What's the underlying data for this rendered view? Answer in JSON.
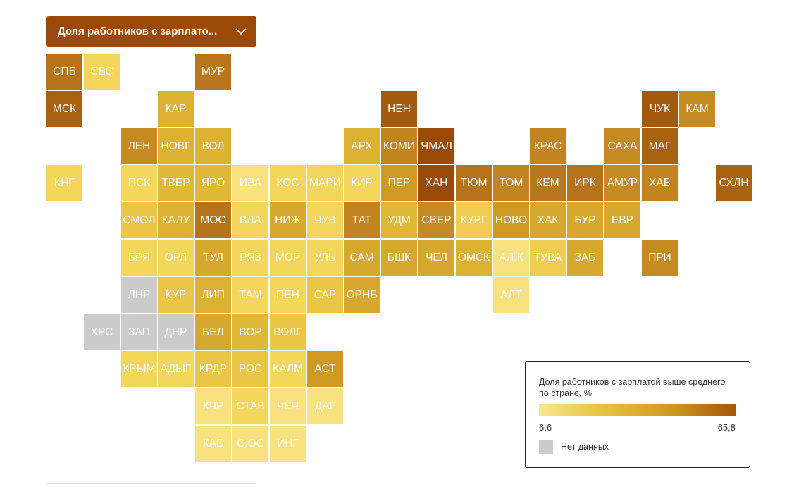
{
  "dropdown": {
    "label": "Доля работников с зарплато...",
    "icon": "chevron-down-icon"
  },
  "legend": {
    "title": "Доля работников с зарплатой выше среднего по стране, %",
    "min_label": "6,6",
    "max_label": "65,8",
    "no_data_label": "Нет данных",
    "gradient_colors": [
      "#f9e68c",
      "#e8c040",
      "#cf9a22",
      "#a4560a"
    ],
    "no_data_color": "#cbcbcb"
  },
  "regions": [
    {
      "label": "СПБ",
      "row": 0,
      "col": 0,
      "color": "#b5731a"
    },
    {
      "label": "СВС",
      "row": 0,
      "col": 1,
      "color": "#f5d65c"
    },
    {
      "label": "МУР",
      "row": 0,
      "col": 4,
      "color": "#b9771d"
    },
    {
      "label": "МСК",
      "row": 1,
      "col": 0,
      "color": "#a9620f"
    },
    {
      "label": "КАР",
      "row": 1,
      "col": 3,
      "color": "#dcb232"
    },
    {
      "label": "НЕН",
      "row": 1,
      "col": 9,
      "color": "#a45a0c"
    },
    {
      "label": "ЧУК",
      "row": 1,
      "col": 16,
      "color": "#a45a0c"
    },
    {
      "label": "КАМ",
      "row": 1,
      "col": 17,
      "color": "#c68a22"
    },
    {
      "label": "ЛЕН",
      "row": 2,
      "col": 2,
      "color": "#c68a22"
    },
    {
      "label": "НОВГ",
      "row": 2,
      "col": 3,
      "color": "#ddb233"
    },
    {
      "label": "ВОЛ",
      "row": 2,
      "col": 4,
      "color": "#dcb232"
    },
    {
      "label": "АРХ",
      "row": 2,
      "col": 8,
      "color": "#dcb232"
    },
    {
      "label": "КОМИ",
      "row": 2,
      "col": 9,
      "color": "#c28420"
    },
    {
      "label": "ЯМАЛ",
      "row": 2,
      "col": 10,
      "color": "#9a4a06"
    },
    {
      "label": "КРАС",
      "row": 2,
      "col": 13,
      "color": "#c28420"
    },
    {
      "label": "САХА",
      "row": 2,
      "col": 15,
      "color": "#c68a22"
    },
    {
      "label": "МАГ",
      "row": 2,
      "col": 16,
      "color": "#a9620f"
    },
    {
      "label": "КНГ",
      "row": 3,
      "col": 0,
      "color": "#f5d65c"
    },
    {
      "label": "ПСК",
      "row": 3,
      "col": 2,
      "color": "#f5d65c"
    },
    {
      "label": "ТВЕР",
      "row": 3,
      "col": 3,
      "color": "#e0b838"
    },
    {
      "label": "ЯРО",
      "row": 3,
      "col": 4,
      "color": "#e0b838"
    },
    {
      "label": "ИВА",
      "row": 3,
      "col": 5,
      "color": "#f8e17f"
    },
    {
      "label": "КОС",
      "row": 3,
      "col": 6,
      "color": "#f5d65c"
    },
    {
      "label": "МАРИ",
      "row": 3,
      "col": 7,
      "color": "#f5d65c"
    },
    {
      "label": "КИР",
      "row": 3,
      "col": 8,
      "color": "#f5d65c"
    },
    {
      "label": "ПЕР",
      "row": 3,
      "col": 9,
      "color": "#cf9a22"
    },
    {
      "label": "ХАН",
      "row": 3,
      "col": 10,
      "color": "#9a4a06"
    },
    {
      "label": "ТЮМ",
      "row": 3,
      "col": 11,
      "color": "#b5731a"
    },
    {
      "label": "ТОМ",
      "row": 3,
      "col": 12,
      "color": "#c28420"
    },
    {
      "label": "КЕМ",
      "row": 3,
      "col": 13,
      "color": "#b9771d"
    },
    {
      "label": "ИРК",
      "row": 3,
      "col": 14,
      "color": "#b5731a"
    },
    {
      "label": "АМУР",
      "row": 3,
      "col": 15,
      "color": "#c68a22"
    },
    {
      "label": "ХАБ",
      "row": 3,
      "col": 16,
      "color": "#c28420"
    },
    {
      "label": "СХЛН",
      "row": 3,
      "col": 18,
      "color": "#a9620f"
    },
    {
      "label": "СМОЛ",
      "row": 4,
      "col": 2,
      "color": "#ebc546"
    },
    {
      "label": "КАЛУ",
      "row": 4,
      "col": 3,
      "color": "#dcb232"
    },
    {
      "label": "МОС",
      "row": 4,
      "col": 4,
      "color": "#b5731a"
    },
    {
      "label": "ВЛА",
      "row": 4,
      "col": 5,
      "color": "#f5d65c"
    },
    {
      "label": "НИЖ",
      "row": 4,
      "col": 6,
      "color": "#d6a92e"
    },
    {
      "label": "ЧУВ",
      "row": 4,
      "col": 7,
      "color": "#f5d65c"
    },
    {
      "label": "ТАТ",
      "row": 4,
      "col": 8,
      "color": "#c28420"
    },
    {
      "label": "УДМ",
      "row": 4,
      "col": 9,
      "color": "#e0b838"
    },
    {
      "label": "СВЕР",
      "row": 4,
      "col": 10,
      "color": "#c68a22"
    },
    {
      "label": "КУРГ",
      "row": 4,
      "col": 11,
      "color": "#f0cd50"
    },
    {
      "label": "НОВО",
      "row": 4,
      "col": 12,
      "color": "#cf9a22"
    },
    {
      "label": "ХАК",
      "row": 4,
      "col": 13,
      "color": "#d6a92e"
    },
    {
      "label": "БУР",
      "row": 4,
      "col": 14,
      "color": "#d6a92e"
    },
    {
      "label": "ЕВР",
      "row": 4,
      "col": 15,
      "color": "#d6a92e"
    },
    {
      "label": "БРЯ",
      "row": 5,
      "col": 2,
      "color": "#f5d65c"
    },
    {
      "label": "ОРЛ",
      "row": 5,
      "col": 3,
      "color": "#f5d65c"
    },
    {
      "label": "ТУЛ",
      "row": 5,
      "col": 4,
      "color": "#d6a92e"
    },
    {
      "label": "РЯЗ",
      "row": 5,
      "col": 5,
      "color": "#f5d65c"
    },
    {
      "label": "МОР",
      "row": 5,
      "col": 6,
      "color": "#f5d65c"
    },
    {
      "label": "УЛЬ",
      "row": 5,
      "col": 7,
      "color": "#f5d65c"
    },
    {
      "label": "САМ",
      "row": 5,
      "col": 8,
      "color": "#d6a92e"
    },
    {
      "label": "БШК",
      "row": 5,
      "col": 9,
      "color": "#d6a92e"
    },
    {
      "label": "ЧЕЛ",
      "row": 5,
      "col": 10,
      "color": "#d6a92e"
    },
    {
      "label": "ОМСК",
      "row": 5,
      "col": 11,
      "color": "#dcb232"
    },
    {
      "label": "АЛ.К",
      "row": 5,
      "col": 12,
      "color": "#f8e17f"
    },
    {
      "label": "ТУВА",
      "row": 5,
      "col": 13,
      "color": "#f0cd50"
    },
    {
      "label": "ЗАБ",
      "row": 5,
      "col": 14,
      "color": "#d6a92e"
    },
    {
      "label": "ПРИ",
      "row": 5,
      "col": 16,
      "color": "#c68a22"
    },
    {
      "label": "ЛНР",
      "row": 6,
      "col": 2,
      "color": "#cbcbcb"
    },
    {
      "label": "КУР",
      "row": 6,
      "col": 3,
      "color": "#ebc546"
    },
    {
      "label": "ЛИП",
      "row": 6,
      "col": 4,
      "color": "#dcb232"
    },
    {
      "label": "ТАМ",
      "row": 6,
      "col": 5,
      "color": "#f5d65c"
    },
    {
      "label": "ПЕН",
      "row": 6,
      "col": 6,
      "color": "#f5d65c"
    },
    {
      "label": "САР",
      "row": 6,
      "col": 7,
      "color": "#ebc546"
    },
    {
      "label": "ОРНБ",
      "row": 6,
      "col": 8,
      "color": "#d6a92e"
    },
    {
      "label": "АЛТ",
      "row": 6,
      "col": 12,
      "color": "#f8e17f"
    },
    {
      "label": "ХРС",
      "row": 7,
      "col": 1,
      "color": "#cbcbcb"
    },
    {
      "label": "ЗАП",
      "row": 7,
      "col": 2,
      "color": "#cbcbcb"
    },
    {
      "label": "ДНР",
      "row": 7,
      "col": 3,
      "color": "#cbcbcb"
    },
    {
      "label": "БЕЛ",
      "row": 7,
      "col": 4,
      "color": "#d6a92e"
    },
    {
      "label": "ВОР",
      "row": 7,
      "col": 5,
      "color": "#e0b838"
    },
    {
      "label": "ВОЛГ",
      "row": 7,
      "col": 6,
      "color": "#ebc546"
    },
    {
      "label": "КРЫМ",
      "row": 8,
      "col": 2,
      "color": "#f5d65c"
    },
    {
      "label": "АДЫГ",
      "row": 8,
      "col": 3,
      "color": "#f5d65c"
    },
    {
      "label": "КРДР",
      "row": 8,
      "col": 4,
      "color": "#ebc546"
    },
    {
      "label": "РОС",
      "row": 8,
      "col": 5,
      "color": "#ebc546"
    },
    {
      "label": "КАЛМ",
      "row": 8,
      "col": 6,
      "color": "#f5d65c"
    },
    {
      "label": "АСТ",
      "row": 8,
      "col": 7,
      "color": "#cf9a22"
    },
    {
      "label": "КЧР",
      "row": 9,
      "col": 4,
      "color": "#f8e17f"
    },
    {
      "label": "СТАВ",
      "row": 9,
      "col": 5,
      "color": "#f5d65c"
    },
    {
      "label": "ЧЕЧ",
      "row": 9,
      "col": 6,
      "color": "#f8e17f"
    },
    {
      "label": "ДАГ",
      "row": 9,
      "col": 7,
      "color": "#f8e17f"
    },
    {
      "label": "КАБ",
      "row": 10,
      "col": 4,
      "color": "#f8e17f"
    },
    {
      "label": "С.ОС",
      "row": 10,
      "col": 5,
      "color": "#f8e17f"
    },
    {
      "label": "ИНГ",
      "row": 10,
      "col": 6,
      "color": "#f8e17f"
    }
  ]
}
